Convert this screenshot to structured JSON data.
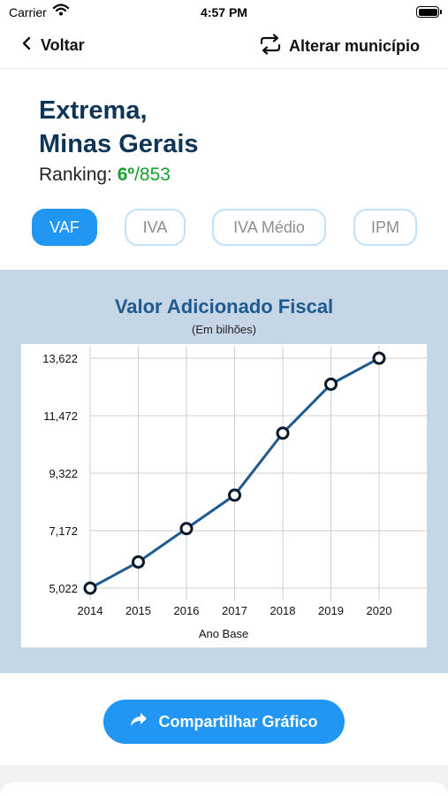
{
  "status_bar": {
    "carrier": "Carrier",
    "time": "4:57 PM"
  },
  "nav": {
    "back_label": "Voltar",
    "change_label": "Alterar município"
  },
  "header": {
    "city": "Extrema,",
    "state": "Minas Gerais",
    "ranking_label": "Ranking: ",
    "ranking_position": "6º",
    "ranking_total": "/853"
  },
  "tabs": [
    {
      "label": "VAF",
      "active": true
    },
    {
      "label": "IVA",
      "active": false
    },
    {
      "label": "IVA Médio",
      "active": false
    },
    {
      "label": "IPM",
      "active": false
    }
  ],
  "colors": {
    "accent": "#2196f3",
    "title": "#0f3556",
    "ranking": "#17a12a",
    "line": "#1e5a8e",
    "panel": "#c5d6e6"
  },
  "chart": {
    "title": "Valor Adicionado Fiscal",
    "subtitle": "(Em bilhões)"
  },
  "chart_data": {
    "type": "line",
    "title": "Valor Adicionado Fiscal",
    "subtitle": "(Em bilhões)",
    "xlabel": "Ano Base",
    "ylabel": "",
    "x": [
      "2014",
      "2015",
      "2016",
      "2017",
      "2018",
      "2019",
      "2020"
    ],
    "series": [
      {
        "values": [
          5.022,
          6.0,
          7.25,
          8.5,
          10.82,
          12.65,
          13.62
        ]
      }
    ],
    "y_ticks": [
      5.022,
      7.172,
      9.322,
      11.472,
      13.622
    ],
    "y_tick_labels": [
      "5,022",
      "7,172",
      "9,322",
      "11,472",
      "13,622"
    ],
    "ylim": [
      5.022,
      13.622
    ],
    "grid": true
  },
  "share": {
    "label": "Compartilhar Gráfico"
  }
}
